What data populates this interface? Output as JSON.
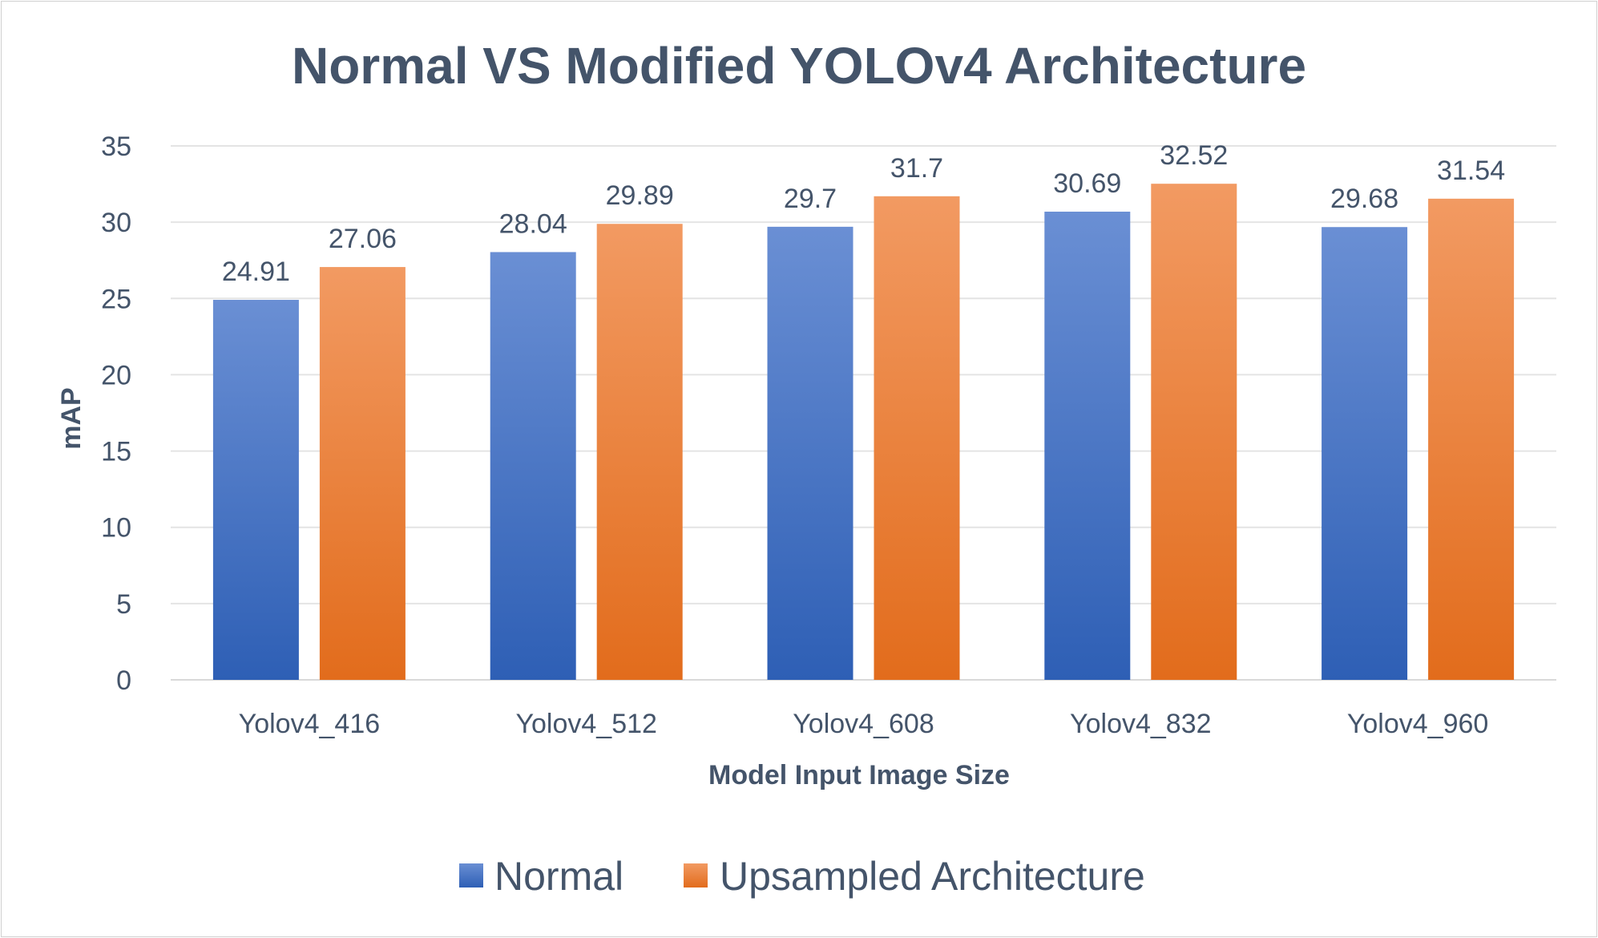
{
  "chart_data": {
    "type": "bar",
    "title": "Normal  VS Modified YOLOv4 Architecture",
    "xlabel": "Model Input Image Size",
    "ylabel": "mAP",
    "categories": [
      "Yolov4_416",
      "Yolov4_512",
      "Yolov4_608",
      "Yolov4_832",
      "Yolov4_960"
    ],
    "series": [
      {
        "name": "Normal",
        "values": [
          24.91,
          28.04,
          29.7,
          30.69,
          29.68
        ],
        "labels": [
          "24.91",
          "28.04",
          "29.7",
          "30.69",
          "29.68"
        ],
        "color": "#4472c4",
        "color_top": "#6a8fd4",
        "color_bottom": "#2e5fb5"
      },
      {
        "name": "Upsampled Architecture",
        "values": [
          27.06,
          29.89,
          31.7,
          32.52,
          31.54
        ],
        "labels": [
          "27.06",
          "29.89",
          "31.7",
          "32.52",
          "31.54"
        ],
        "color": "#ed7d31",
        "color_top": "#f29a62",
        "color_bottom": "#e26c1c"
      }
    ],
    "ylim": [
      0,
      35
    ],
    "yticks": [
      0,
      5,
      10,
      15,
      20,
      25,
      30,
      35
    ],
    "grid": true,
    "legend_position": "bottom"
  }
}
